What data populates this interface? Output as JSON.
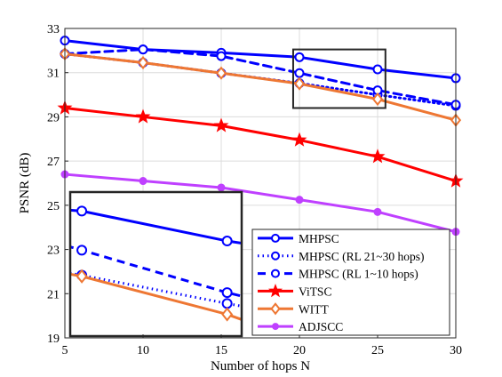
{
  "chart_data": {
    "type": "line",
    "title": "",
    "xlabel": "Number of hops N",
    "ylabel": "PSNR (dB)",
    "xlim": [
      5,
      30
    ],
    "ylim": [
      19,
      33
    ],
    "xticks": [
      5,
      10,
      15,
      20,
      25,
      30
    ],
    "yticks": [
      19,
      21,
      23,
      25,
      27,
      29,
      31,
      33
    ],
    "grid": true,
    "legend_position": "bottom-right",
    "series": [
      {
        "name": "MHPSC",
        "color": "#0000ff",
        "dash": "solid",
        "marker": "circle-open",
        "x": [
          5,
          10,
          15,
          20,
          25,
          30
        ],
        "values": [
          32.45,
          32.05,
          31.9,
          31.7,
          31.15,
          30.75
        ]
      },
      {
        "name": "MHPSC (RL 21~30 hops)",
        "color": "#0000ff",
        "dash": "dotted",
        "marker": "circle-open",
        "x": [
          5,
          10,
          15,
          20,
          25,
          30
        ],
        "values": [
          31.85,
          31.45,
          30.98,
          30.52,
          30.0,
          29.5
        ]
      },
      {
        "name": "MHPSC (RL 1~10 hops)",
        "color": "#0000ff",
        "dash": "dashed",
        "marker": "circle-open",
        "x": [
          5,
          10,
          15,
          20,
          25,
          30
        ],
        "values": [
          31.85,
          32.05,
          31.75,
          30.98,
          30.2,
          29.55
        ]
      },
      {
        "name": "ViTSC",
        "color": "#ff0000",
        "dash": "solid",
        "marker": "star",
        "x": [
          5,
          10,
          15,
          20,
          25,
          30
        ],
        "values": [
          29.4,
          29.0,
          28.6,
          27.95,
          27.2,
          26.1
        ]
      },
      {
        "name": "WITT",
        "color": "#ee7733",
        "dash": "solid",
        "marker": "diamond-open",
        "x": [
          5,
          10,
          15,
          20,
          25,
          30
        ],
        "values": [
          31.85,
          31.45,
          30.98,
          30.5,
          29.8,
          28.85
        ]
      },
      {
        "name": "ADJSCC",
        "color": "#bf40ff",
        "dash": "solid",
        "marker": "circle-filled",
        "x": [
          5,
          10,
          15,
          20,
          25,
          30
        ],
        "values": [
          26.4,
          26.1,
          25.8,
          25.25,
          24.7,
          23.8
        ]
      }
    ],
    "annotations": [
      {
        "type": "zoom-box",
        "xrange": [
          19.6,
          25.5
        ],
        "yrange": [
          29.4,
          32.05
        ]
      },
      {
        "type": "inset",
        "shows_region": "zoom-box",
        "series": [
          "MHPSC",
          "MHPSC (RL 21~30 hops)",
          "MHPSC (RL 1~10 hops)",
          "WITT"
        ]
      }
    ]
  }
}
